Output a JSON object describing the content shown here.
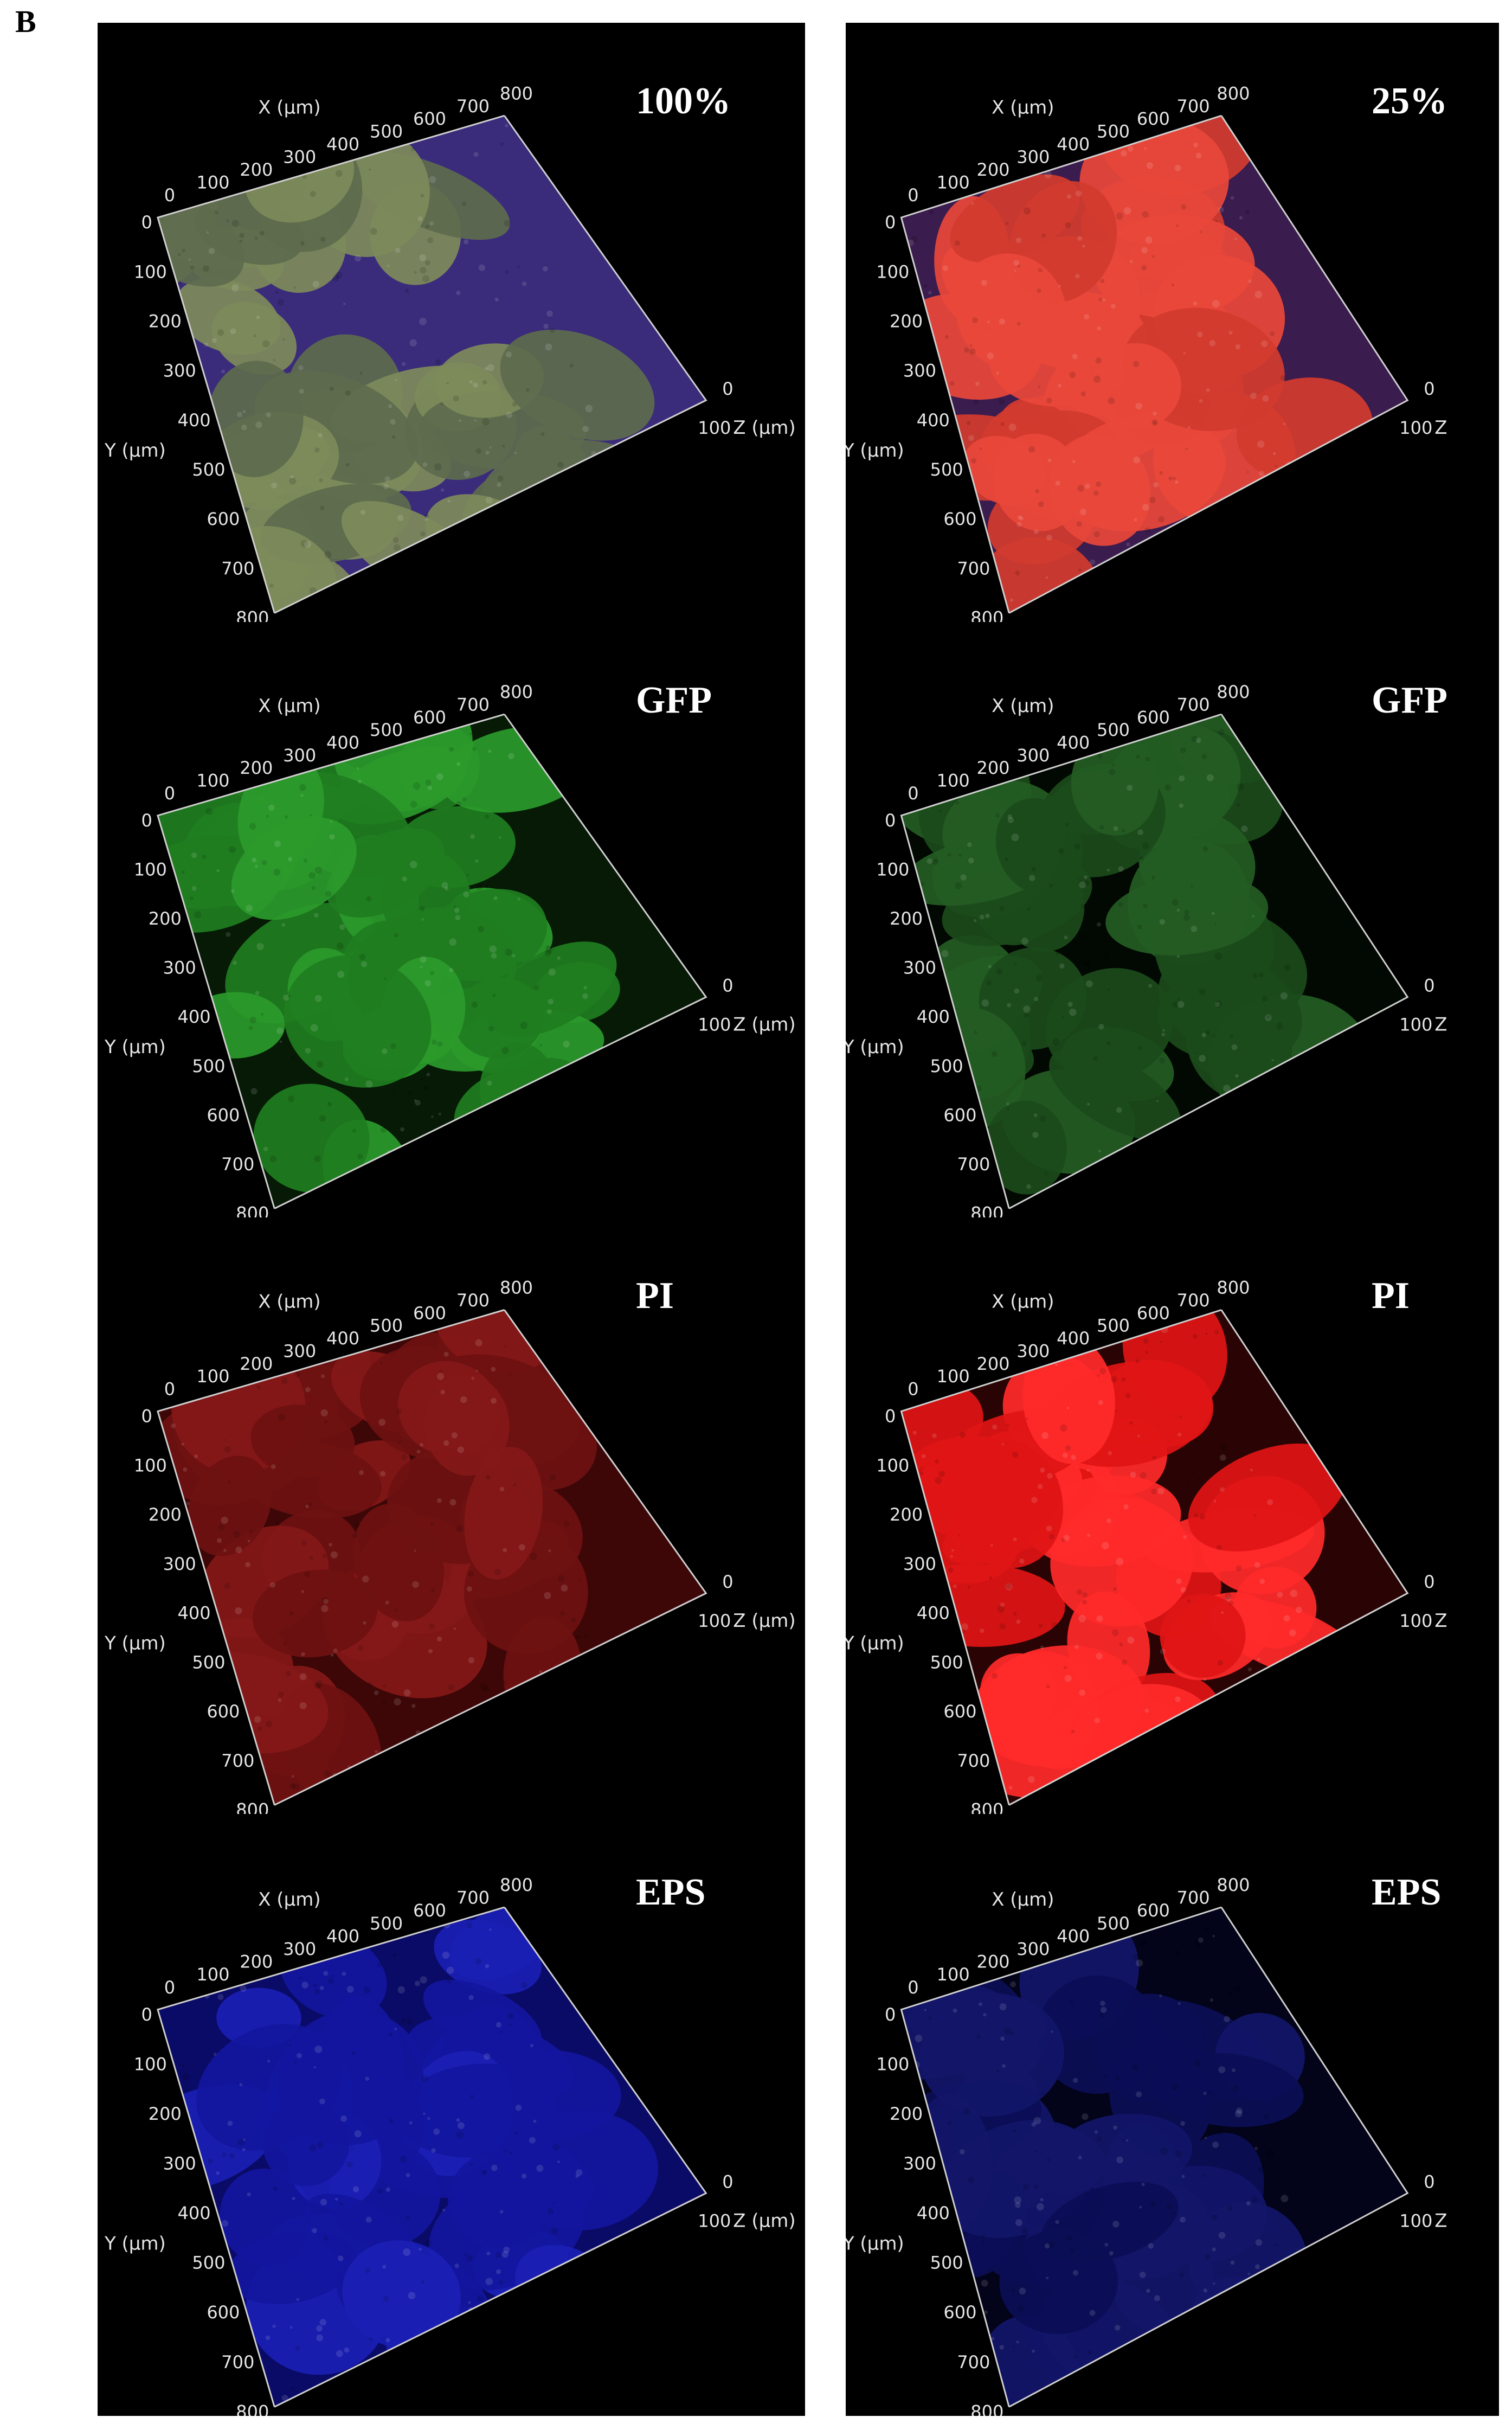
{
  "figure_label": "B",
  "axis_text": {
    "x_title": "X (µm)",
    "y_title": "Y (µm)",
    "z_title": "Z (µm)",
    "z_title_cut": "Z",
    "x_ticks": [
      "0",
      "100",
      "200",
      "300",
      "400",
      "500",
      "600",
      "700",
      "800"
    ],
    "y_ticks": [
      "0",
      "100",
      "200",
      "300",
      "400",
      "500",
      "600",
      "700",
      "800"
    ],
    "z_ticks": [
      "0",
      "100"
    ]
  },
  "panels": [
    {
      "id": "p-100-merged",
      "label": "100%",
      "col": 0,
      "row": 0,
      "channel": "merged",
      "colors": {
        "base": "#5e6b4d",
        "mid": "#7d8a5a",
        "gap": "#3a2c7a"
      }
    },
    {
      "id": "p-25-merged",
      "label": "25%",
      "col": 1,
      "row": 0,
      "channel": "merged-red",
      "colors": {
        "base": "#d23a2e",
        "mid": "#e8473a",
        "gap": "#3b1c4e"
      }
    },
    {
      "id": "p-100-gfp",
      "label": "GFP",
      "col": 0,
      "row": 1,
      "channel": "gfp",
      "colors": {
        "base": "#1f7d1f",
        "mid": "#2b9a2b",
        "gap": "#061a06"
      }
    },
    {
      "id": "p-25-gfp",
      "label": "GFP",
      "col": 1,
      "row": 1,
      "channel": "gfp-dim",
      "colors": {
        "base": "#1b4a1b",
        "mid": "#245c24",
        "gap": "#020802"
      }
    },
    {
      "id": "p-100-pi",
      "label": "PI",
      "col": 0,
      "row": 2,
      "channel": "pi-dim",
      "colors": {
        "base": "#6e1111",
        "mid": "#841818",
        "gap": "#3e0707"
      }
    },
    {
      "id": "p-25-pi",
      "label": "PI",
      "col": 1,
      "row": 2,
      "channel": "pi",
      "colors": {
        "base": "#e01414",
        "mid": "#ff2a2a",
        "gap": "#2a0404"
      }
    },
    {
      "id": "p-100-eps",
      "label": "EPS",
      "col": 0,
      "row": 3,
      "channel": "eps",
      "colors": {
        "base": "#13169e",
        "mid": "#1b1fb4",
        "gap": "#0a0b66"
      }
    },
    {
      "id": "p-25-eps",
      "label": "EPS",
      "col": 1,
      "row": 3,
      "channel": "eps-dim",
      "colors": {
        "base": "#0b0e55",
        "mid": "#121568",
        "gap": "#03031a"
      }
    }
  ]
}
